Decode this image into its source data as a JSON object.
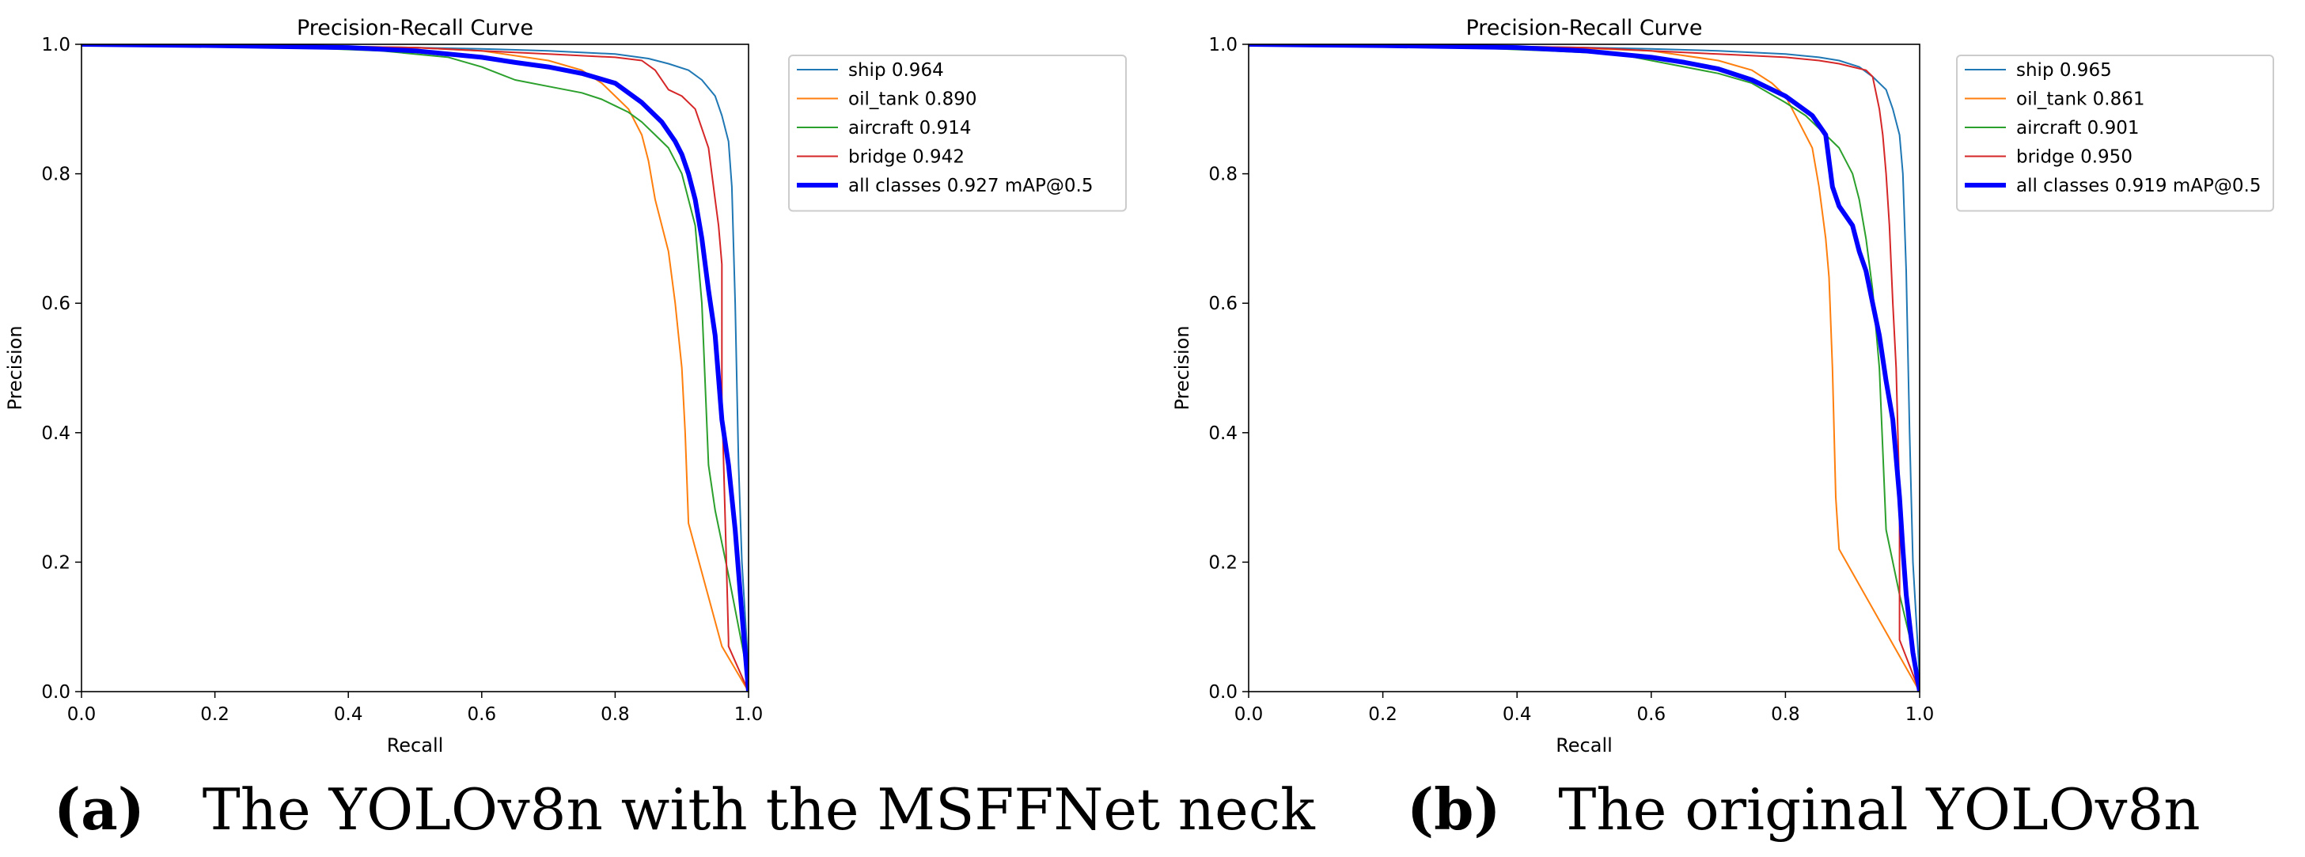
{
  "chart_data": [
    {
      "type": "line",
      "title": "Precision-Recall Curve",
      "xlabel": "Recall",
      "ylabel": "Precision",
      "xlim": [
        0,
        1
      ],
      "ylim": [
        0,
        1
      ],
      "xticks": [
        "0.0",
        "0.2",
        "0.4",
        "0.6",
        "0.8",
        "1.0"
      ],
      "yticks": [
        "0.0",
        "0.2",
        "0.4",
        "0.6",
        "0.8",
        "1.0"
      ],
      "legend_position": "outside-right-top",
      "series": [
        {
          "name": "ship",
          "label": "ship 0.964",
          "color": "#1f77b4",
          "width": "thin",
          "x": [
            0,
            0.3,
            0.5,
            0.6,
            0.7,
            0.8,
            0.85,
            0.88,
            0.91,
            0.93,
            0.95,
            0.96,
            0.97,
            0.975,
            0.98,
            0.985,
            0.99,
            1.0
          ],
          "y": [
            1,
            0.998,
            0.995,
            0.993,
            0.99,
            0.985,
            0.978,
            0.97,
            0.96,
            0.945,
            0.92,
            0.89,
            0.85,
            0.78,
            0.6,
            0.35,
            0.2,
            0.03
          ]
        },
        {
          "name": "oil_tank",
          "label": "oil_tank 0.890",
          "color": "#ff7f0e",
          "width": "thin",
          "x": [
            0,
            0.3,
            0.5,
            0.6,
            0.7,
            0.75,
            0.78,
            0.8,
            0.82,
            0.84,
            0.85,
            0.86,
            0.87,
            0.88,
            0.89,
            0.9,
            0.905,
            0.91,
            0.96,
            1.0
          ],
          "y": [
            1,
            0.998,
            0.995,
            0.99,
            0.975,
            0.96,
            0.94,
            0.92,
            0.9,
            0.86,
            0.82,
            0.76,
            0.72,
            0.68,
            0.6,
            0.5,
            0.4,
            0.26,
            0.07,
            0.0
          ]
        },
        {
          "name": "aircraft",
          "label": "aircraft 0.914",
          "color": "#2ca02c",
          "width": "thin",
          "x": [
            0,
            0.3,
            0.45,
            0.55,
            0.6,
            0.65,
            0.7,
            0.75,
            0.78,
            0.8,
            0.82,
            0.84,
            0.86,
            0.88,
            0.9,
            0.92,
            0.93,
            0.94,
            0.95,
            0.97,
            1.0
          ],
          "y": [
            1,
            0.996,
            0.99,
            0.98,
            0.965,
            0.945,
            0.935,
            0.925,
            0.915,
            0.905,
            0.895,
            0.88,
            0.86,
            0.84,
            0.8,
            0.72,
            0.6,
            0.35,
            0.28,
            0.18,
            0.02
          ]
        },
        {
          "name": "bridge",
          "label": "bridge 0.942",
          "color": "#d62728",
          "width": "thin",
          "x": [
            0,
            0.3,
            0.5,
            0.6,
            0.7,
            0.8,
            0.84,
            0.86,
            0.88,
            0.9,
            0.92,
            0.93,
            0.94,
            0.945,
            0.95,
            0.955,
            0.96,
            0.96,
            0.97,
            0.97,
            1.0
          ],
          "y": [
            1,
            0.998,
            0.995,
            0.99,
            0.985,
            0.98,
            0.975,
            0.96,
            0.93,
            0.92,
            0.9,
            0.87,
            0.84,
            0.8,
            0.76,
            0.72,
            0.66,
            0.45,
            0.08,
            0.07,
            0.0
          ]
        },
        {
          "name": "all classes",
          "label": "all classes 0.927 mAP@0.5",
          "color": "#0000ff",
          "width": "thick",
          "x": [
            0,
            0.2,
            0.4,
            0.5,
            0.6,
            0.65,
            0.7,
            0.75,
            0.8,
            0.84,
            0.87,
            0.89,
            0.9,
            0.91,
            0.92,
            0.93,
            0.94,
            0.95,
            0.96,
            0.97,
            0.975,
            0.98,
            0.99,
            1.0
          ],
          "y": [
            1,
            0.998,
            0.995,
            0.99,
            0.98,
            0.972,
            0.965,
            0.955,
            0.94,
            0.91,
            0.88,
            0.85,
            0.83,
            0.8,
            0.76,
            0.7,
            0.62,
            0.55,
            0.42,
            0.35,
            0.3,
            0.25,
            0.12,
            0.0
          ]
        }
      ],
      "caption_letter": "(a)",
      "caption_text": "The YOLOv8n with the MSFFNet neck"
    },
    {
      "type": "line",
      "title": "Precision-Recall Curve",
      "xlabel": "Recall",
      "ylabel": "Precision",
      "xlim": [
        0,
        1
      ],
      "ylim": [
        0,
        1
      ],
      "xticks": [
        "0.0",
        "0.2",
        "0.4",
        "0.6",
        "0.8",
        "1.0"
      ],
      "yticks": [
        "0.0",
        "0.2",
        "0.4",
        "0.6",
        "0.8",
        "1.0"
      ],
      "legend_position": "outside-right-top",
      "series": [
        {
          "name": "ship",
          "label": "ship 0.965",
          "color": "#1f77b4",
          "width": "thin",
          "x": [
            0,
            0.3,
            0.5,
            0.6,
            0.7,
            0.8,
            0.85,
            0.88,
            0.91,
            0.93,
            0.95,
            0.96,
            0.97,
            0.975,
            0.98,
            0.985,
            0.99,
            1.0
          ],
          "y": [
            1,
            0.998,
            0.995,
            0.993,
            0.99,
            0.985,
            0.98,
            0.975,
            0.965,
            0.95,
            0.93,
            0.9,
            0.86,
            0.8,
            0.65,
            0.4,
            0.2,
            0.02
          ]
        },
        {
          "name": "oil_tank",
          "label": "oil_tank 0.861",
          "color": "#ff7f0e",
          "width": "thin",
          "x": [
            0,
            0.3,
            0.5,
            0.6,
            0.7,
            0.75,
            0.78,
            0.8,
            0.82,
            0.84,
            0.85,
            0.86,
            0.865,
            0.87,
            0.875,
            0.88,
            1.0
          ],
          "y": [
            1,
            0.998,
            0.994,
            0.99,
            0.975,
            0.96,
            0.94,
            0.92,
            0.88,
            0.84,
            0.78,
            0.7,
            0.64,
            0.5,
            0.3,
            0.22,
            0.0
          ]
        },
        {
          "name": "aircraft",
          "label": "aircraft 0.901",
          "color": "#2ca02c",
          "width": "thin",
          "x": [
            0,
            0.3,
            0.45,
            0.55,
            0.6,
            0.65,
            0.7,
            0.75,
            0.8,
            0.83,
            0.86,
            0.88,
            0.9,
            0.91,
            0.92,
            0.93,
            0.94,
            0.95,
            0.97,
            1.0
          ],
          "y": [
            1,
            0.996,
            0.99,
            0.985,
            0.975,
            0.965,
            0.955,
            0.94,
            0.91,
            0.89,
            0.86,
            0.84,
            0.8,
            0.76,
            0.7,
            0.62,
            0.5,
            0.25,
            0.15,
            0.02
          ]
        },
        {
          "name": "bridge",
          "label": "bridge 0.950",
          "color": "#d62728",
          "width": "thin",
          "x": [
            0,
            0.3,
            0.5,
            0.6,
            0.7,
            0.8,
            0.85,
            0.88,
            0.9,
            0.92,
            0.93,
            0.94,
            0.945,
            0.95,
            0.955,
            0.96,
            0.965,
            0.97,
            0.97,
            1.0
          ],
          "y": [
            1,
            0.998,
            0.995,
            0.99,
            0.985,
            0.98,
            0.975,
            0.97,
            0.965,
            0.96,
            0.95,
            0.9,
            0.86,
            0.8,
            0.72,
            0.6,
            0.5,
            0.3,
            0.08,
            0.0
          ]
        },
        {
          "name": "all classes",
          "label": "all classes 0.919 mAP@0.5",
          "color": "#0000ff",
          "width": "thick",
          "x": [
            0,
            0.2,
            0.4,
            0.5,
            0.6,
            0.65,
            0.7,
            0.75,
            0.8,
            0.84,
            0.86,
            0.87,
            0.88,
            0.9,
            0.91,
            0.92,
            0.93,
            0.94,
            0.95,
            0.96,
            0.97,
            0.975,
            0.98,
            0.99,
            1.0
          ],
          "y": [
            1,
            0.998,
            0.995,
            0.99,
            0.98,
            0.972,
            0.962,
            0.945,
            0.92,
            0.89,
            0.86,
            0.78,
            0.75,
            0.72,
            0.68,
            0.65,
            0.6,
            0.55,
            0.48,
            0.42,
            0.3,
            0.22,
            0.15,
            0.06,
            0.0
          ]
        }
      ],
      "caption_letter": "(b)",
      "caption_text": "The original YOLOv8n"
    }
  ]
}
